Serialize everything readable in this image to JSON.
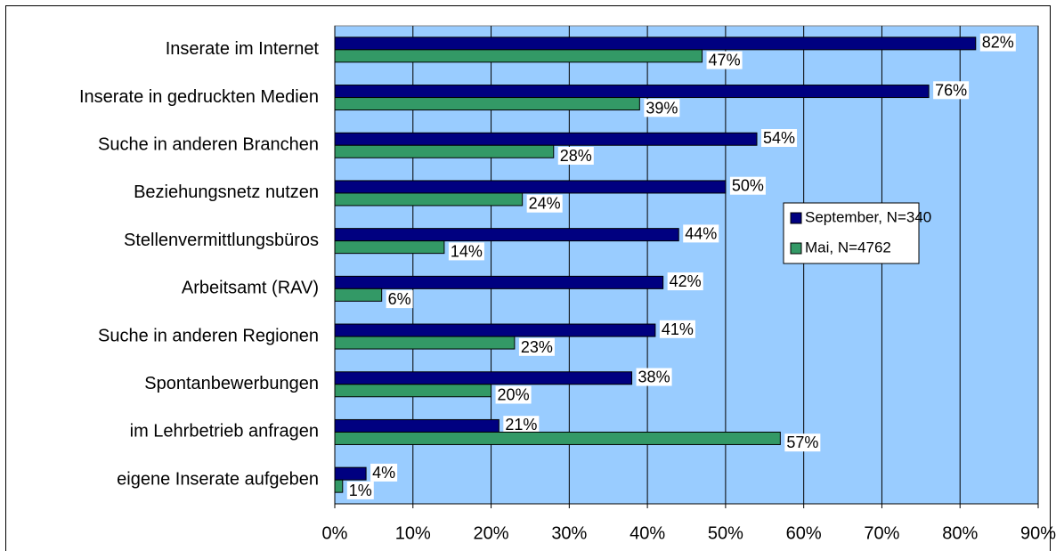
{
  "chart_data": {
    "type": "bar",
    "orientation": "horizontal",
    "categories": [
      "Inserate im Internet",
      "Inserate in gedruckten Medien",
      "Suche in anderen Branchen",
      "Beziehungsnetz nutzen",
      "Stellenvermittlungsbüros",
      "Arbeitsamt (RAV)",
      "Suche in anderen Regionen",
      "Spontanbewerbungen",
      "im Lehrbetrieb anfragen",
      "eigene Inserate aufgeben"
    ],
    "series": [
      {
        "name": "September, N=340",
        "color": "#000080",
        "values": [
          82,
          76,
          54,
          50,
          44,
          42,
          41,
          38,
          21,
          4
        ],
        "value_labels": [
          "82%",
          "76%",
          "54%",
          "50%",
          "44%",
          "42%",
          "41%",
          "38%",
          "21%",
          "4%"
        ]
      },
      {
        "name": "Mai, N=4762",
        "color": "#339966",
        "values": [
          47,
          39,
          28,
          24,
          14,
          6,
          23,
          20,
          57,
          1
        ],
        "value_labels": [
          "47%",
          "39%",
          "28%",
          "24%",
          "14%",
          "6%",
          "23%",
          "20%",
          "57%",
          "1%"
        ]
      }
    ],
    "xlim": [
      0,
      90
    ],
    "xticks": [
      {
        "value": 0,
        "label": "0%"
      },
      {
        "value": 10,
        "label": "10%"
      },
      {
        "value": 20,
        "label": "20%"
      },
      {
        "value": 30,
        "label": "30%"
      },
      {
        "value": 40,
        "label": "40%"
      },
      {
        "value": 50,
        "label": "50%"
      },
      {
        "value": 60,
        "label": "60%"
      },
      {
        "value": 70,
        "label": "70%"
      },
      {
        "value": 80,
        "label": "80%"
      },
      {
        "value": 90,
        "label": "90%"
      }
    ],
    "grid": true,
    "legend": "right",
    "plot_background": "#99ccff"
  }
}
